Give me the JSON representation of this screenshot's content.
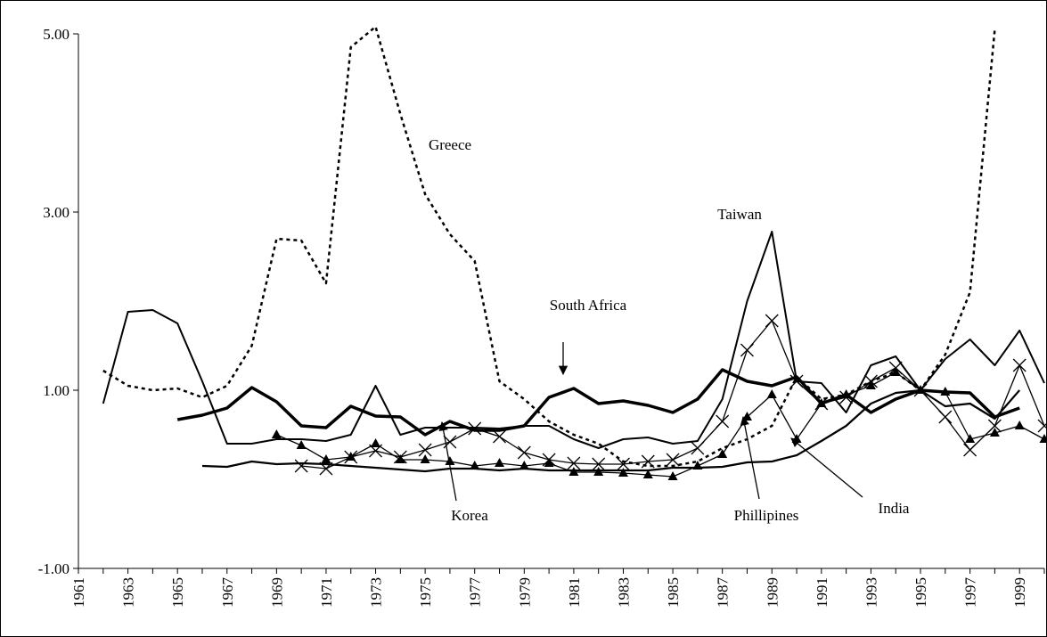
{
  "chart_data": {
    "type": "line",
    "x": [
      1961,
      1962,
      1963,
      1964,
      1965,
      1966,
      1967,
      1968,
      1969,
      1970,
      1971,
      1972,
      1973,
      1974,
      1975,
      1976,
      1977,
      1978,
      1979,
      1980,
      1981,
      1982,
      1983,
      1984,
      1985,
      1986,
      1987,
      1988,
      1989,
      1990,
      1991,
      1992,
      1993,
      1994,
      1995,
      1996,
      1997,
      1998,
      1999,
      2000
    ],
    "xlim": [
      1961,
      2000
    ],
    "xticks": [
      1961,
      1963,
      1965,
      1967,
      1969,
      1971,
      1973,
      1975,
      1977,
      1979,
      1981,
      1983,
      1985,
      1987,
      1989,
      1991,
      1993,
      1995,
      1997,
      1999
    ],
    "ylim": [
      -1,
      5
    ],
    "yticks": [
      {
        "value": -1,
        "label": "-1.00"
      },
      {
        "value": 1,
        "label": "1.00"
      },
      {
        "value": 3,
        "label": "3.00"
      },
      {
        "value": 5,
        "label": "5.00"
      }
    ],
    "series": [
      {
        "name": "Greece",
        "color": "#000000",
        "dash": true,
        "width": 2.5,
        "values": [
          null,
          1.22,
          1.05,
          1.0,
          1.02,
          0.92,
          1.05,
          1.5,
          2.7,
          2.68,
          2.2,
          4.85,
          5.08,
          4.1,
          3.2,
          2.75,
          2.45,
          1.1,
          0.9,
          0.65,
          0.5,
          0.4,
          0.2,
          0.15,
          0.15,
          0.2,
          0.35,
          0.45,
          0.6,
          1.15,
          0.9,
          0.95,
          1.1,
          1.2,
          1.0,
          1.4,
          2.1,
          5.05,
          null,
          null
        ]
      },
      {
        "name": "Taiwan",
        "color": "#000000",
        "width": 2,
        "values": [
          null,
          0.85,
          1.88,
          1.9,
          1.75,
          1.1,
          0.4,
          0.4,
          0.45,
          0.45,
          0.43,
          0.5,
          1.05,
          0.5,
          0.58,
          0.58,
          0.58,
          0.57,
          0.6,
          0.6,
          0.45,
          0.35,
          0.45,
          0.47,
          0.4,
          0.43,
          0.9,
          2.0,
          2.78,
          1.1,
          1.08,
          0.75,
          1.28,
          1.38,
          1.0,
          1.35,
          1.57,
          1.28,
          1.67,
          1.08
        ]
      },
      {
        "name": "South Africa",
        "color": "#000000",
        "width": 3.5,
        "values": [
          null,
          null,
          null,
          null,
          0.67,
          0.72,
          0.8,
          1.03,
          0.87,
          0.6,
          0.58,
          0.82,
          0.71,
          0.7,
          0.5,
          0.65,
          0.55,
          0.55,
          0.6,
          0.92,
          1.02,
          0.85,
          0.88,
          0.83,
          0.75,
          0.9,
          1.23,
          1.1,
          1.05,
          1.15,
          0.85,
          0.95,
          0.75,
          0.9,
          1.0,
          0.98,
          0.97,
          0.7,
          0.8,
          null
        ]
      },
      {
        "name": "Korea",
        "color": "#000000",
        "width": 1.3,
        "marker": "x",
        "values": [
          null,
          null,
          null,
          null,
          null,
          null,
          null,
          null,
          null,
          0.15,
          0.12,
          0.25,
          0.32,
          0.25,
          0.33,
          0.42,
          0.57,
          0.48,
          0.3,
          0.22,
          0.18,
          0.17,
          0.17,
          0.2,
          0.22,
          0.35,
          0.65,
          1.45,
          1.78,
          1.1,
          0.85,
          0.92,
          1.1,
          1.25,
          1.0,
          0.7,
          0.33,
          0.6,
          1.28,
          0.6
        ]
      },
      {
        "name": "Phillipines",
        "color": "#000000",
        "width": 1.3,
        "marker": "triangle",
        "values": [
          null,
          null,
          null,
          null,
          null,
          null,
          null,
          null,
          0.5,
          0.38,
          0.22,
          0.25,
          0.4,
          0.22,
          0.22,
          0.2,
          0.15,
          0.18,
          0.15,
          0.18,
          0.08,
          0.08,
          0.07,
          0.05,
          0.03,
          0.15,
          0.28,
          0.7,
          0.95,
          0.45,
          0.85,
          0.95,
          1.05,
          1.2,
          1.0,
          0.98,
          0.45,
          0.52,
          0.6,
          0.45
        ]
      },
      {
        "name": "India",
        "color": "#000000",
        "width": 2.2,
        "values": [
          null,
          null,
          null,
          null,
          null,
          0.15,
          0.14,
          0.2,
          0.17,
          0.18,
          0.17,
          0.15,
          0.13,
          0.11,
          0.09,
          0.12,
          0.12,
          0.1,
          0.12,
          0.1,
          0.1,
          0.1,
          0.1,
          0.1,
          0.13,
          0.13,
          0.14,
          0.19,
          0.2,
          0.27,
          0.43,
          0.6,
          0.85,
          0.97,
          1.0,
          0.82,
          0.85,
          0.68,
          1.0,
          null
        ]
      }
    ]
  }
}
